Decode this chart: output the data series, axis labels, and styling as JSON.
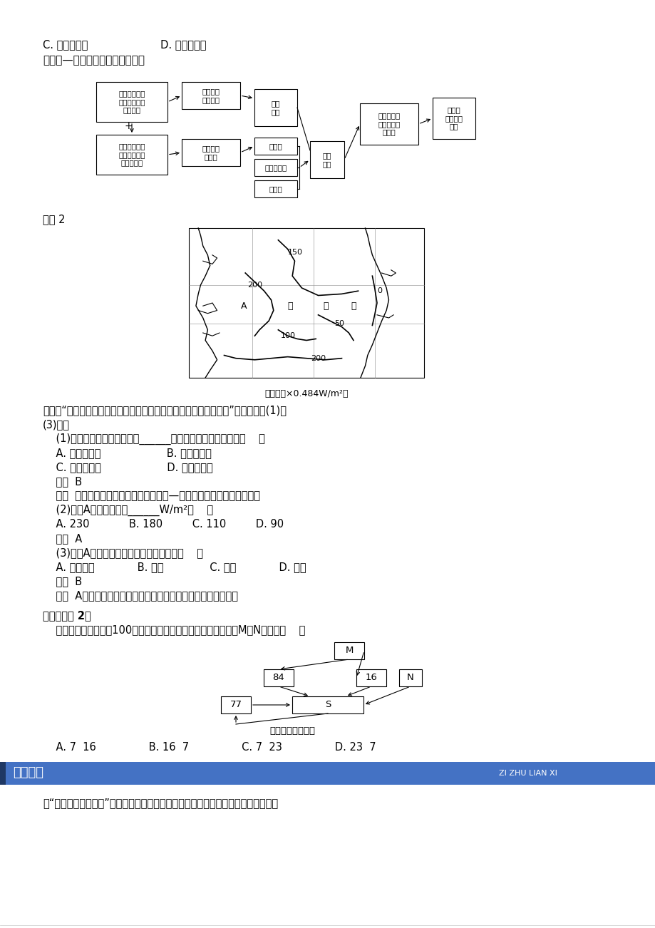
{
  "bg_color": "#ffffff",
  "line1": "C. 使气温升高                      D. 使气温降低",
  "line2": "二、海—气相互作用与水、热平衡",
  "box1": "不同纬度海洋\n获得的太阳辐\n射量不同",
  "box2": "海洋上的\n大气环流",
  "box3": "大气\n环流",
  "box4": "不同纬度海洋\n与大陆对大气\n加热的差异",
  "box5": "海陆间季\n风环流",
  "box6": "风海流",
  "box7": "地转偏向力",
  "box8": "密度流",
  "box9": "大洋\n环流",
  "box10": "水分和热量\n在不同地区\n的传输",
  "box11": "地球上\n水、热的\n平衡",
  "dianli2": "典例 2",
  "map_caption": "（单位：×0.484W/m²）",
  "qtext1": "上图为“某大洋部分海区年平均每日从海洋输入大气的总热量分布图”，读图回答(1)～",
  "qtext2": "(3)题。",
  "q1_stem": "    (1)该等値线分布图反映的是______两者之间的热量补给关系（    ）",
  "q1_AB": "    A. 太阳和陆地                    B. 海洋和大气",
  "q1_CD": "    C. 太阳和大气                    D. 太阳和海洋",
  "ans1": "    答案  B",
  "jiexi1": "    解析  据题意可知，图中曲线表示的是海—气间热量传递关系的分布图。",
  "q2_stem": "    (2)图中A处的値可能是______W/m²（    ）",
  "q2_opts": "    A. 230            B. 180         C. 110         D. 90",
  "ans2": "    答案  A",
  "q3_stem": "    (3)图中A海区表层海水热量的直接来源是（    ）",
  "q3_opts": "    A. 太阳辐射             B. 洋流              C. 陆地             D. 大气",
  "ans3": "    答案  B",
  "jiexi3": "    解析  A处海水温度明显高于两侧，应该是受到暇流的影响所致。",
  "bianshi_title": "【变式练习 2】",
  "bianshi_q": "    读图，水循环总量为100单位，按全球多年水量平衡规律推算，M、N分别为（    ）",
  "diag_caption": "全球水循环模式图",
  "bianshi_opts": "    A. 7  16                B. 16  7                C. 7  23                D. 23  7",
  "zizhu_title": "自主练习",
  "zizhu_sub": "ZI ZHU LIAN XI",
  "zizhu_text": "读“全球水循环模式图”（箭头分别代表降水、蕲发、径流与水汿输送，数字表示循环"
}
